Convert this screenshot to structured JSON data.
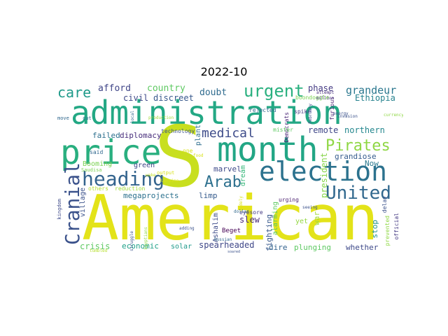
{
  "title": "2022-10",
  "words": [
    {
      "text": "American",
      "color": "#e3e319"
    },
    {
      "text": "S",
      "color": "#c8df1f"
    },
    {
      "text": "administration",
      "color": "#23a884"
    },
    {
      "text": "month",
      "color": "#22a685"
    },
    {
      "text": "price",
      "color": "#29af7f"
    },
    {
      "text": "election",
      "color": "#2c728e"
    },
    {
      "text": "heading",
      "color": "#33638d"
    },
    {
      "text": "Cranial",
      "color": "#3b528b"
    },
    {
      "text": "United",
      "color": "#31688e"
    },
    {
      "text": "Arab",
      "color": "#2d708e"
    },
    {
      "text": "urgent",
      "color": "#2ab07f"
    },
    {
      "text": "Pirates",
      "color": "#8fd744"
    },
    {
      "text": "care",
      "color": "#1f9a8a"
    },
    {
      "text": "medical",
      "color": "#3e4c8a"
    },
    {
      "text": "grandeur",
      "color": "#2a778e"
    },
    {
      "text": "afford",
      "color": "#404688"
    },
    {
      "text": "country",
      "color": "#5ec962"
    },
    {
      "text": "civil",
      "color": "#3e4989"
    },
    {
      "text": "discreet",
      "color": "#38598c"
    },
    {
      "text": "doubt",
      "color": "#2f6b8e"
    },
    {
      "text": "phase",
      "color": "#443a83"
    },
    {
      "text": "Ethiopia",
      "color": "#26828e"
    },
    {
      "text": "boondoggle",
      "color": "#7ad151"
    },
    {
      "text": "rejected",
      "color": "#31688e"
    },
    {
      "text": "Democrats",
      "color": "#482475"
    },
    {
      "text": "remote",
      "color": "#3f4788"
    },
    {
      "text": "northern",
      "color": "#24878e"
    },
    {
      "text": "failed",
      "color": "#2d708e"
    },
    {
      "text": "diplomacy",
      "color": "#472d7b"
    },
    {
      "text": "technology",
      "color": "#3b528b"
    },
    {
      "text": "plant",
      "color": "#2e6e8e"
    },
    {
      "text": "mister",
      "color": "#5ec962"
    },
    {
      "text": "furious",
      "color": "#481f70"
    },
    {
      "text": "attempt",
      "color": "#472d7b"
    },
    {
      "text": "spike",
      "color": "#443983"
    },
    {
      "text": "million",
      "color": "#46327e"
    },
    {
      "text": "grandiose",
      "color": "#365c8d"
    },
    {
      "text": "Now",
      "color": "#2a788e"
    },
    {
      "text": "president",
      "color": "#86d549"
    },
    {
      "text": "Booming",
      "color": "#7ad151"
    },
    {
      "text": "green",
      "color": "#3f4788"
    },
    {
      "text": "marvel",
      "color": "#3e4a89"
    },
    {
      "text": "dream",
      "color": "#35b779"
    },
    {
      "text": "village",
      "color": "#3b528b"
    },
    {
      "text": "megaprojects",
      "color": "#2c718e"
    },
    {
      "text": "limp",
      "color": "#365c8d"
    },
    {
      "text": "slew",
      "color": "#482878"
    },
    {
      "text": "fighting",
      "color": "#38598c"
    },
    {
      "text": "alarming",
      "color": "#5ec962"
    },
    {
      "text": "urging",
      "color": "#481c6e"
    },
    {
      "text": "eyesore",
      "color": "#443983"
    },
    {
      "text": "Ashalim",
      "color": "#3e4c8a"
    },
    {
      "text": "Beget",
      "color": "#440154"
    },
    {
      "text": "yet",
      "color": "#93d741"
    },
    {
      "text": "war",
      "color": "#a2da37"
    },
    {
      "text": "stop",
      "color": "#21918c"
    },
    {
      "text": "crisis",
      "color": "#5ec962"
    },
    {
      "text": "economic",
      "color": "#1fa188"
    },
    {
      "text": "solar",
      "color": "#1f9a8a"
    },
    {
      "text": "spearheaded",
      "color": "#3f4788"
    },
    {
      "text": "dire",
      "color": "#33638d"
    },
    {
      "text": "plunging",
      "color": "#5ec962"
    },
    {
      "text": "whether",
      "color": "#3e4989"
    },
    {
      "text": "delay",
      "color": "#3b528b"
    },
    {
      "text": "official",
      "color": "#443983"
    },
    {
      "text": "prevented",
      "color": "#8fd744"
    },
    {
      "text": "kingdom",
      "color": "#3e4989"
    },
    {
      "text": "said",
      "color": "#31688e"
    },
    {
      "text": "Saudisa",
      "color": "#7ad151"
    },
    {
      "text": "others",
      "color": "#b5de2b"
    },
    {
      "text": "reduction",
      "color": "#a2da37"
    },
    {
      "text": "output",
      "color": "#d8e219"
    },
    {
      "text": "one",
      "color": "#d8e219"
    },
    {
      "text": "food",
      "color": "#d8e219"
    },
    {
      "text": "Ukraine",
      "color": "#d8e219"
    },
    {
      "text": "wake",
      "color": "#c2df23"
    },
    {
      "text": "move",
      "color": "#31688e"
    },
    {
      "text": "cut",
      "color": "#31688e"
    },
    {
      "text": "production",
      "color": "#a2da37"
    },
    {
      "text": "struggle",
      "color": "#3b528b"
    },
    {
      "text": "Egyptians",
      "color": "#8fd744"
    },
    {
      "text": "tumbled",
      "color": "#b5de2b"
    },
    {
      "text": "local",
      "color": "#31688e"
    },
    {
      "text": "energy",
      "color": "#3b528b"
    },
    {
      "text": "invasion",
      "color": "#3b528b"
    },
    {
      "text": "currency",
      "color": "#8fd744"
    },
    {
      "text": "February",
      "color": "#3e4c8a"
    },
    {
      "text": "seeing",
      "color": "#3b528b"
    },
    {
      "text": "adding",
      "color": "#3b528b"
    },
    {
      "text": "dollar",
      "color": "#31688e"
    },
    {
      "text": "soared",
      "color": "#3b528b"
    },
    {
      "text": "Russian",
      "color": "#31688e"
    },
    {
      "text": "widely",
      "color": "#d8e219"
    }
  ]
}
